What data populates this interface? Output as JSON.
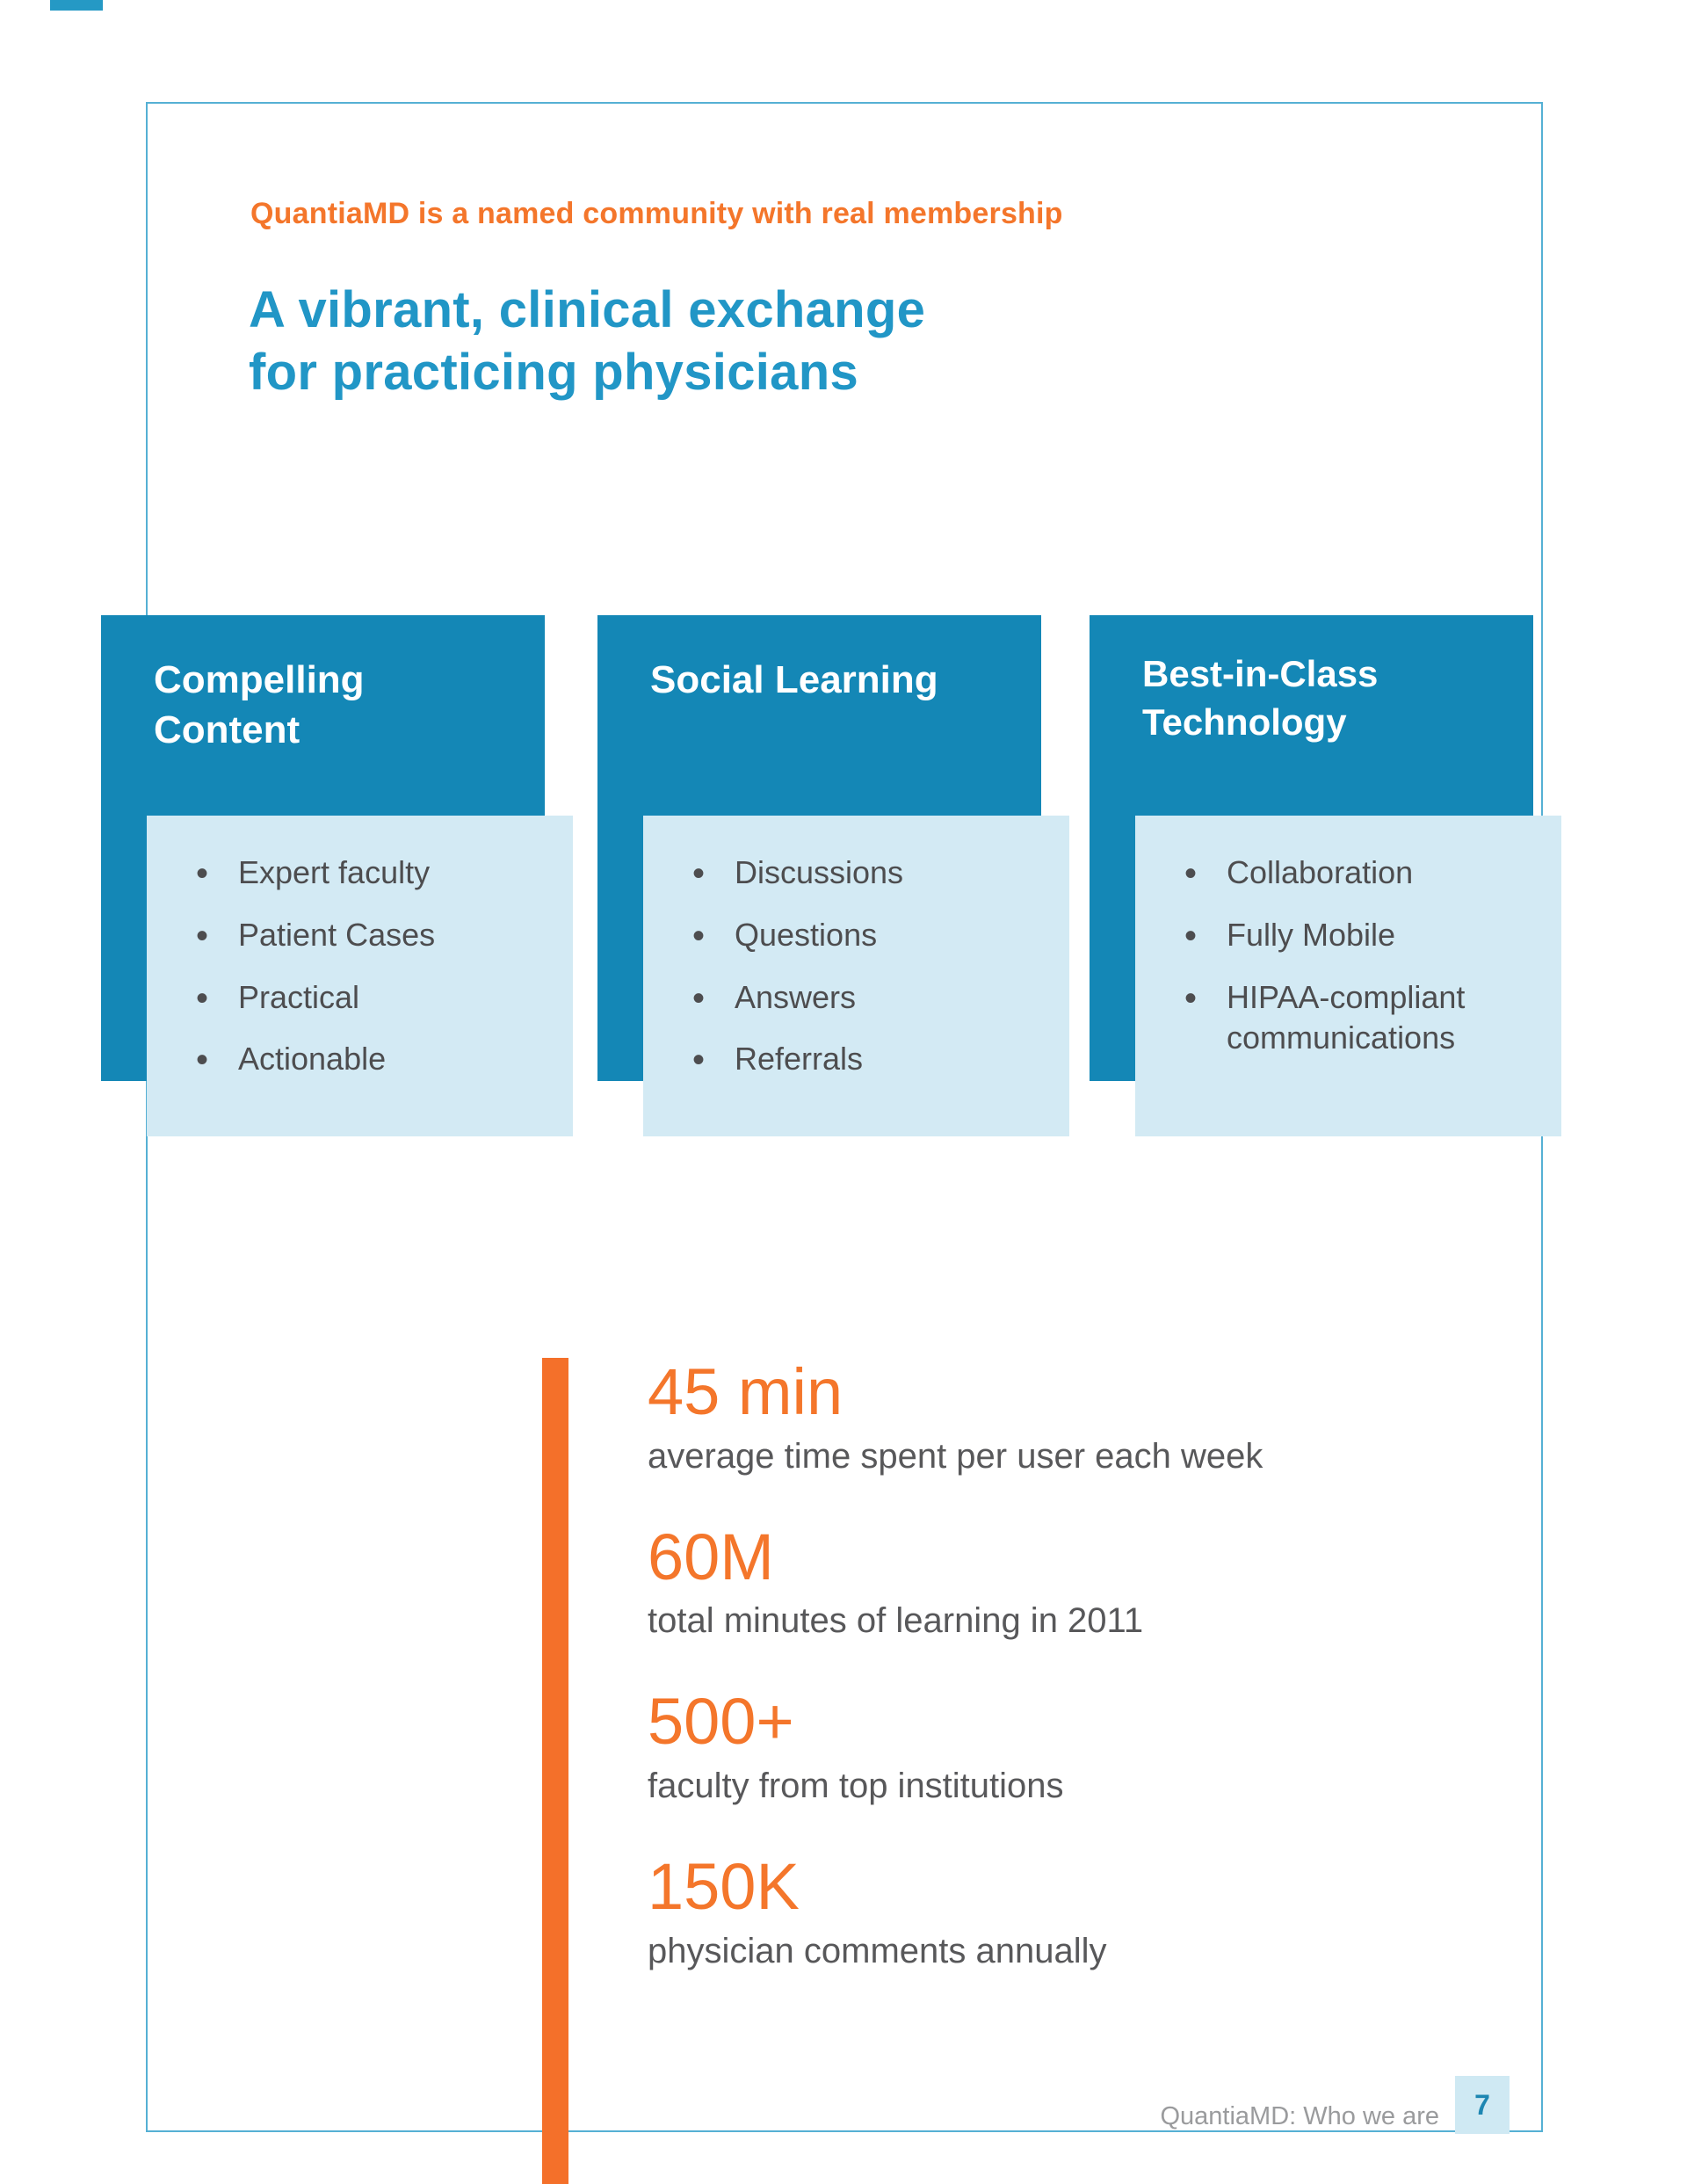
{
  "header": {
    "eyebrow": "QuantiaMD is a named community with real membership",
    "title_line1": "A vibrant, clinical exchange",
    "title_line2": "for practicing physicians"
  },
  "columns": [
    {
      "header": "Compelling Content",
      "items": [
        "Expert faculty",
        "Patient Cases",
        "Practical",
        "Actionable"
      ]
    },
    {
      "header": "Social Learning",
      "items": [
        "Discussions",
        "Questions",
        "Answers",
        "Referrals"
      ]
    },
    {
      "header": "Best-in-Class Technology",
      "items": [
        "Collaboration",
        "Fully Mobile",
        "HIPAA-compliant communications"
      ]
    }
  ],
  "stats": [
    {
      "value": "45 min",
      "label": "average time spent per user each week"
    },
    {
      "value": "60M",
      "label": "total minutes of learning in 2011"
    },
    {
      "value": "500+",
      "label": "faculty from top institutions"
    },
    {
      "value": "150K",
      "label": "physician comments annually"
    }
  ],
  "footer": {
    "text": "QuantiaMD: Who we are",
    "page_number": "7"
  },
  "colors": {
    "orange": "#f4702a",
    "heading_blue": "#2196c6",
    "column_header_teal": "#1487b6",
    "column_body_light_blue": "#d3eaf4",
    "body_gray": "#4d4d4f",
    "footer_gray": "#9a9b9d"
  }
}
